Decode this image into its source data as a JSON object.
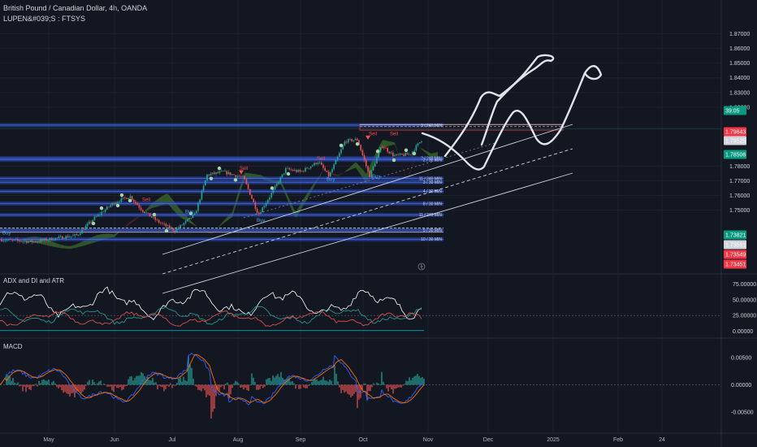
{
  "header": {
    "symbol_line": "British Pound / Canadian Dollar, 4h, OANDA",
    "indicator_line": "LUPEN&#039;S : FTSYS"
  },
  "panes": {
    "adx_title": "ADX and DI and ATR",
    "macd_title": "MACD"
  },
  "chart_data": [
    {
      "type": "candlestick",
      "title": "British Pound / Canadian Dollar, 4h, OANDA",
      "y_ticks": [
        "1.87000",
        "1.86000",
        "1.85000",
        "1.84000",
        "1.83000",
        "1.82000",
        "1.78000",
        "1.77000",
        "1.76000",
        "1.75000"
      ],
      "x_ticks": [
        "May",
        "Jun",
        "Jul",
        "Aug",
        "Sep",
        "Oct",
        "Nov",
        "Dec",
        "2025",
        "Feb",
        "24"
      ],
      "price_badges": [
        {
          "text": "39:05",
          "color": "#089981"
        },
        {
          "text": "1.79843",
          "color": "#f23645"
        },
        {
          "text": "1.79525",
          "color": "#d1d4dc"
        },
        {
          "text": "1.78506",
          "color": "#089981"
        },
        {
          "text": "1.73821",
          "color": "#089981"
        },
        {
          "text": "1.73551",
          "color": "#d1d4dc"
        },
        {
          "text": "1.73549",
          "color": "#f23645"
        },
        {
          "text": "1.73451",
          "color": "#f23645"
        }
      ],
      "levels": [
        {
          "label": "3 / 240 MIN",
          "price": 1.8078
        },
        {
          "label": "2 / 240 MIN",
          "price": 1.7853
        },
        {
          "label": "2 / 30 MIN",
          "price": 1.7842
        },
        {
          "label": "11 / 240 MIN",
          "price": 1.7715
        },
        {
          "label": "3 / 30 MIN",
          "price": 1.769
        },
        {
          "label": "4 / 30 MIN",
          "price": 1.7628
        },
        {
          "label": "8 / 30 MIN",
          "price": 1.7545
        },
        {
          "label": "11 / 240 MIN",
          "price": 1.7468
        },
        {
          "label": "5 / 30 MIN",
          "price": 1.7365
        },
        {
          "label": "10 / 30 MIN",
          "price": 1.7302
        }
      ],
      "signals": [
        "Sell",
        "Buy",
        "Sell",
        "Buy",
        "Sell",
        "Buy",
        "Sell",
        "Buy",
        "Sell",
        "Buy"
      ],
      "close": 1.79525
    },
    {
      "type": "line",
      "title": "ADX and DI and ATR",
      "y_ticks": [
        "75.00000",
        "50.00000",
        "25.00000",
        "0.00000"
      ],
      "ylim": [
        0,
        75
      ],
      "series": []
    },
    {
      "type": "line",
      "title": "MACD",
      "y_ticks": [
        "0.00500",
        "0.00000",
        "-0.00500"
      ],
      "ylim": [
        -0.0065,
        0.0065
      ],
      "series": []
    }
  ],
  "colors": {
    "bg": "#131722",
    "up": "#26a69a",
    "down": "#ef5350",
    "cloud_green": "#3c6e2b",
    "cloud_red": "#6b2a2a",
    "level_band": "#2a4bb5",
    "macd": "#2962ff",
    "signal": "#ff6d00"
  }
}
